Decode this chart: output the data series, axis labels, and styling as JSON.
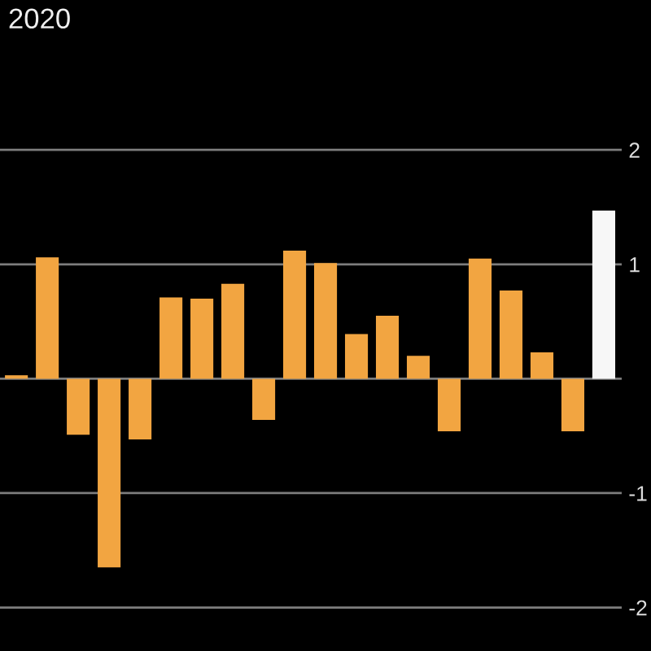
{
  "chart_data": {
    "type": "bar",
    "title": "2020",
    "categories": [
      null,
      null,
      null,
      null,
      null,
      null,
      null,
      null,
      null,
      null,
      null,
      null,
      null,
      null,
      null,
      null,
      null,
      null,
      null,
      null
    ],
    "values": [
      0.03,
      1.06,
      -0.49,
      -1.65,
      -0.53,
      0.71,
      0.7,
      0.83,
      -0.36,
      1.12,
      1.01,
      0.39,
      0.55,
      0.2,
      -0.46,
      1.05,
      0.77,
      0.23,
      -0.46,
      1.47
    ],
    "colors": [
      "#f2a541",
      "#f2a541",
      "#f2a541",
      "#f2a541",
      "#f2a541",
      "#f2a541",
      "#f2a541",
      "#f2a541",
      "#f2a541",
      "#f2a541",
      "#f2a541",
      "#f2a541",
      "#f2a541",
      "#f2a541",
      "#f2a541",
      "#f2a541",
      "#f2a541",
      "#f2a541",
      "#f2a541",
      "#f7f7f7"
    ],
    "ylim": [
      -2.38,
      3.31
    ],
    "yticks": [
      -2,
      -1,
      {
        "value": 0,
        "label": null
      },
      1,
      2
    ],
    "grid": "y",
    "tick_labels": "y"
  }
}
